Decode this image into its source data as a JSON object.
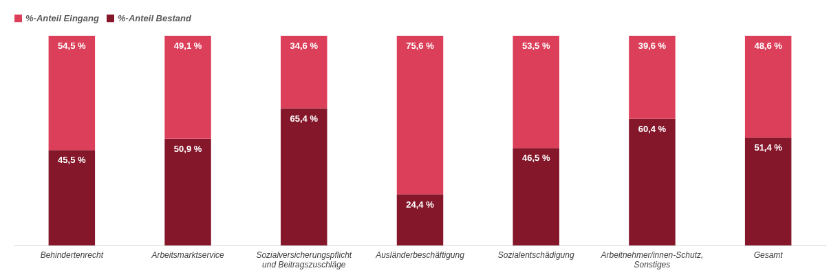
{
  "chart_data": {
    "type": "bar",
    "stacked": true,
    "tick_labels": "x",
    "categories": [
      "Behindertenrecht",
      "Arbeitsmarktservice",
      "Sozialversicherungspflicht\nund Beitragszuschläge",
      "Ausländerbeschäftigung",
      "Sozialentschädigung",
      "Arbeitnehmer/innen-Schutz,\nSonstiges",
      "Gesamt"
    ],
    "series": [
      {
        "name": "%-Anteil Bestand",
        "color": "#85172b",
        "values": [
          45.5,
          50.9,
          65.4,
          24.4,
          46.5,
          60.4,
          51.4
        ],
        "value_labels": [
          "45,5 %",
          "50,9 %",
          "65,4 %",
          "24,4 %",
          "46,5 %",
          "60,4 %",
          "51,4 %"
        ]
      },
      {
        "name": "%-Anteil Eingang",
        "color": "#dc3f5a",
        "values": [
          54.5,
          49.1,
          34.6,
          75.6,
          53.5,
          39.6,
          48.6
        ],
        "value_labels": [
          "54,5 %",
          "49,1 %",
          "34,6 %",
          "75,6 %",
          "53,5 %",
          "39,6 %",
          "48,6 %"
        ]
      }
    ],
    "legend": "top",
    "grid": false
  }
}
